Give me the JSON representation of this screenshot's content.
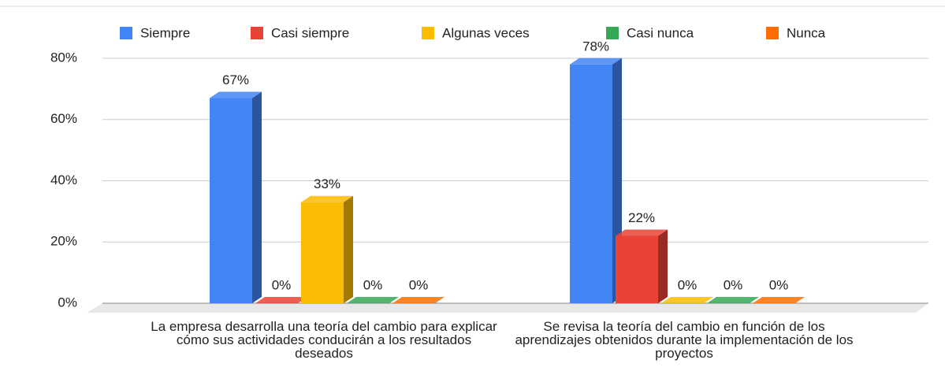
{
  "chart_data": {
    "type": "bar3d",
    "categories": [
      "La empresa desarrolla una teoría del cambio para explicar cómo sus actividades conducirán a los resultados deseados",
      "Se revisa la teoría del cambio en función de los aprendizajes obtenidos durante la implementación de los proyectos"
    ],
    "series": [
      {
        "name": "Siempre",
        "color": "#4285f4",
        "values": [
          67,
          78
        ],
        "value_labels": [
          "67%",
          "78%"
        ]
      },
      {
        "name": "Casi siempre",
        "color": "#ea4335",
        "values": [
          0,
          22
        ],
        "value_labels": [
          "0%",
          "22%"
        ]
      },
      {
        "name": "Algunas veces",
        "color": "#fbbc04",
        "values": [
          33,
          0
        ],
        "value_labels": [
          "33%",
          "0%"
        ]
      },
      {
        "name": "Casi nunca",
        "color": "#34a853",
        "values": [
          0,
          0
        ],
        "value_labels": [
          "0%",
          "0%"
        ]
      },
      {
        "name": "Nunca",
        "color": "#ff6d01",
        "values": [
          0,
          0
        ],
        "value_labels": [
          "0%",
          "0%"
        ]
      }
    ],
    "ylim": [
      0,
      80
    ],
    "yticks": [
      {
        "value": 0,
        "label": "0%"
      },
      {
        "value": 20,
        "label": "20%"
      },
      {
        "value": 40,
        "label": "40%"
      },
      {
        "value": 60,
        "label": "60%"
      },
      {
        "value": 80,
        "label": "80%"
      }
    ],
    "grid": true,
    "legend": "top"
  }
}
